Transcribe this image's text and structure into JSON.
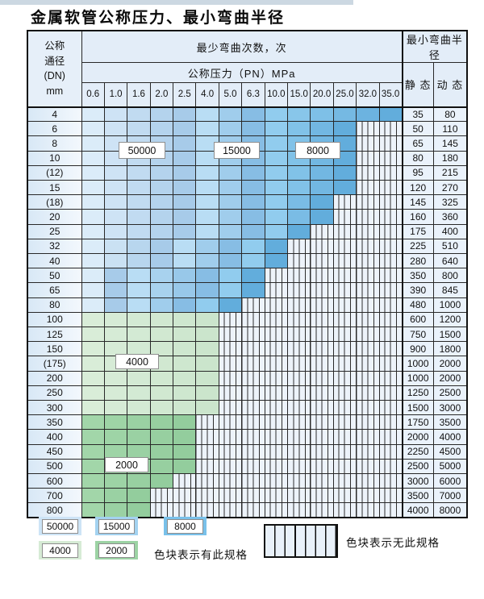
{
  "page": {
    "title": "金属软管公称压力、最小弯曲半径"
  },
  "table": {
    "header": {
      "dn_lines": [
        "公称",
        "通径",
        "(DN)",
        "mm"
      ],
      "cycles_title": "最少弯曲次数，次",
      "pressure_title": "公称压力（PN）MPa",
      "radius_title": "最小弯曲半径",
      "static_label": "静 态",
      "dynamic_label": "动 态",
      "pressure_columns": [
        "0.6",
        "1.0",
        "1.6",
        "2.0",
        "2.5",
        "4.0",
        "5.0",
        "6.3",
        "10.0",
        "15.0",
        "20.0",
        "25.0",
        "32.0",
        "35.0"
      ]
    },
    "zone_colors": {
      "k5": "#cde4f6",
      "k15": "#a3d2f0",
      "k8": "#79c1ea",
      "k4": "#d6ebd5",
      "k2": "#9cd3a4"
    },
    "rows": [
      {
        "dn": "4",
        "cells": [
          "k5",
          "k5",
          "k5",
          "k5",
          "k5",
          "k15",
          "k15",
          "k15",
          "k8",
          "k8",
          "k8",
          "k8",
          "k8",
          "k8"
        ],
        "static": "35",
        "dynamic": "80"
      },
      {
        "dn": "6",
        "cells": [
          "k5",
          "k5",
          "k5",
          "k5",
          "k5",
          "k15",
          "k15",
          "k15",
          "k8",
          "k8",
          "k8",
          "k8",
          "hx",
          "hx"
        ],
        "static": "50",
        "dynamic": "110"
      },
      {
        "dn": "8",
        "cells": [
          "k5",
          "k5",
          "k5",
          "k5",
          "k5",
          "k15",
          "k15",
          "k15",
          "k8",
          "k8",
          "k8",
          "k8",
          "hx",
          "hx"
        ],
        "static": "65",
        "dynamic": "145"
      },
      {
        "dn": "10",
        "cells": [
          "k5",
          "k5",
          "k5",
          "k5",
          "k5",
          "k15",
          "k15",
          "k15",
          "k8",
          "k8",
          "k8",
          "k8",
          "hx",
          "hx"
        ],
        "static": "80",
        "dynamic": "180"
      },
      {
        "dn": "(12)",
        "cells": [
          "k5",
          "k5",
          "k5",
          "k5",
          "k5",
          "k15",
          "k15",
          "k15",
          "k8",
          "k8",
          "k8",
          "k8",
          "hx",
          "hx"
        ],
        "static": "95",
        "dynamic": "215"
      },
      {
        "dn": "15",
        "cells": [
          "k5",
          "k5",
          "k5",
          "k5",
          "k5",
          "k15",
          "k15",
          "k15",
          "k8",
          "k8",
          "k8",
          "k8",
          "hx",
          "hx"
        ],
        "static": "120",
        "dynamic": "270"
      },
      {
        "dn": "(18)",
        "cells": [
          "k5",
          "k5",
          "k5",
          "k5",
          "k5",
          "k15",
          "k15",
          "k15",
          "k8",
          "k8",
          "k8",
          "hx",
          "hx",
          "hx"
        ],
        "static": "145",
        "dynamic": "325"
      },
      {
        "dn": "20",
        "cells": [
          "k5",
          "k5",
          "k5",
          "k5",
          "k5",
          "k15",
          "k15",
          "k15",
          "k8",
          "k8",
          "k8",
          "hx",
          "hx",
          "hx"
        ],
        "static": "160",
        "dynamic": "360"
      },
      {
        "dn": "25",
        "cells": [
          "k5",
          "k5",
          "k5",
          "k5",
          "k5",
          "k15",
          "k15",
          "k15",
          "k8",
          "k8",
          "hx",
          "hx",
          "hx",
          "hx"
        ],
        "static": "175",
        "dynamic": "400"
      },
      {
        "dn": "32",
        "cells": [
          "k5",
          "k5",
          "k5",
          "k5",
          "k15",
          "k15",
          "k15",
          "k8",
          "k8",
          "hx",
          "hx",
          "hx",
          "hx",
          "hx"
        ],
        "static": "225",
        "dynamic": "510"
      },
      {
        "dn": "40",
        "cells": [
          "k5",
          "k5",
          "k5",
          "k5",
          "k15",
          "k15",
          "k15",
          "k8",
          "k8",
          "hx",
          "hx",
          "hx",
          "hx",
          "hx"
        ],
        "static": "280",
        "dynamic": "640"
      },
      {
        "dn": "50",
        "cells": [
          "k5",
          "k5",
          "k15",
          "k15",
          "k15",
          "k15",
          "k8",
          "k8",
          "hx",
          "hx",
          "hx",
          "hx",
          "hx",
          "hx"
        ],
        "static": "350",
        "dynamic": "800"
      },
      {
        "dn": "65",
        "cells": [
          "k5",
          "k5",
          "k15",
          "k15",
          "k15",
          "k15",
          "k8",
          "k8",
          "hx",
          "hx",
          "hx",
          "hx",
          "hx",
          "hx"
        ],
        "static": "390",
        "dynamic": "845"
      },
      {
        "dn": "80",
        "cells": [
          "k5",
          "k5",
          "k15",
          "k15",
          "k15",
          "k8",
          "k8",
          "hx",
          "hx",
          "hx",
          "hx",
          "hx",
          "hx",
          "hx"
        ],
        "static": "480",
        "dynamic": "1000"
      },
      {
        "dn": "100",
        "cells": [
          "k4",
          "k4",
          "k4",
          "k4",
          "k4",
          "k4",
          "hx",
          "hx",
          "hx",
          "hx",
          "hx",
          "hx",
          "hx",
          "hx"
        ],
        "static": "600",
        "dynamic": "1200"
      },
      {
        "dn": "125",
        "cells": [
          "k4",
          "k4",
          "k4",
          "k4",
          "k4",
          "k4",
          "hx",
          "hx",
          "hx",
          "hx",
          "hx",
          "hx",
          "hx",
          "hx"
        ],
        "static": "750",
        "dynamic": "1500"
      },
      {
        "dn": "150",
        "cells": [
          "k4",
          "k4",
          "k4",
          "k4",
          "k4",
          "k4",
          "hx",
          "hx",
          "hx",
          "hx",
          "hx",
          "hx",
          "hx",
          "hx"
        ],
        "static": "900",
        "dynamic": "1800"
      },
      {
        "dn": "(175)",
        "cells": [
          "k4",
          "k4",
          "k4",
          "k4",
          "k4",
          "k4",
          "hx",
          "hx",
          "hx",
          "hx",
          "hx",
          "hx",
          "hx",
          "hx"
        ],
        "static": "1000",
        "dynamic": "2000"
      },
      {
        "dn": "200",
        "cells": [
          "k4",
          "k4",
          "k4",
          "k4",
          "k4",
          "k4",
          "hx",
          "hx",
          "hx",
          "hx",
          "hx",
          "hx",
          "hx",
          "hx"
        ],
        "static": "1000",
        "dynamic": "2000"
      },
      {
        "dn": "250",
        "cells": [
          "k4",
          "k4",
          "k4",
          "k4",
          "k4",
          "k4",
          "hx",
          "hx",
          "hx",
          "hx",
          "hx",
          "hx",
          "hx",
          "hx"
        ],
        "static": "1250",
        "dynamic": "2500"
      },
      {
        "dn": "300",
        "cells": [
          "k4",
          "k4",
          "k4",
          "k4",
          "k4",
          "k4",
          "hx",
          "hx",
          "hx",
          "hx",
          "hx",
          "hx",
          "hx",
          "hx"
        ],
        "static": "1500",
        "dynamic": "3000"
      },
      {
        "dn": "350",
        "cells": [
          "k2",
          "k2",
          "k2",
          "k2",
          "k2",
          "hx",
          "hx",
          "hx",
          "hx",
          "hx",
          "hx",
          "hx",
          "hx",
          "hx"
        ],
        "static": "1750",
        "dynamic": "3500"
      },
      {
        "dn": "400",
        "cells": [
          "k2",
          "k2",
          "k2",
          "k2",
          "k2",
          "hx",
          "hx",
          "hx",
          "hx",
          "hx",
          "hx",
          "hx",
          "hx",
          "hx"
        ],
        "static": "2000",
        "dynamic": "4000"
      },
      {
        "dn": "450",
        "cells": [
          "k2",
          "k2",
          "k2",
          "k2",
          "k2",
          "hx",
          "hx",
          "hx",
          "hx",
          "hx",
          "hx",
          "hx",
          "hx",
          "hx"
        ],
        "static": "2250",
        "dynamic": "4500"
      },
      {
        "dn": "500",
        "cells": [
          "k2",
          "k2",
          "k2",
          "k2",
          "k2",
          "hx",
          "hx",
          "hx",
          "hx",
          "hx",
          "hx",
          "hx",
          "hx",
          "hx"
        ],
        "static": "2500",
        "dynamic": "5000"
      },
      {
        "dn": "600",
        "cells": [
          "k2",
          "k2",
          "k2",
          "k2",
          "hx",
          "hx",
          "hx",
          "hx",
          "hx",
          "hx",
          "hx",
          "hx",
          "hx",
          "hx"
        ],
        "static": "3000",
        "dynamic": "6000"
      },
      {
        "dn": "700",
        "cells": [
          "k2",
          "k2",
          "k2",
          "hx",
          "hx",
          "hx",
          "hx",
          "hx",
          "hx",
          "hx",
          "hx",
          "hx",
          "hx",
          "hx"
        ],
        "static": "3500",
        "dynamic": "7000"
      },
      {
        "dn": "800",
        "cells": [
          "k2",
          "k2",
          "k2",
          "hx",
          "hx",
          "hx",
          "hx",
          "hx",
          "hx",
          "hx",
          "hx",
          "hx",
          "hx",
          "hx"
        ],
        "static": "4000",
        "dynamic": "8000"
      }
    ],
    "overlays": [
      {
        "value": "50000"
      },
      {
        "value": "15000"
      },
      {
        "value": "8000"
      },
      {
        "value": "4000"
      },
      {
        "value": "2000"
      }
    ]
  },
  "legend": {
    "items": [
      {
        "label": "50000",
        "code": "k5"
      },
      {
        "label": "15000",
        "code": "k15"
      },
      {
        "label": "8000",
        "code": "k8"
      },
      {
        "label": "4000",
        "code": "k4"
      },
      {
        "label": "2000",
        "code": "k2"
      }
    ],
    "has_spec_text": "色块表示有此规格",
    "no_spec_text": "色块表示无此规格"
  }
}
